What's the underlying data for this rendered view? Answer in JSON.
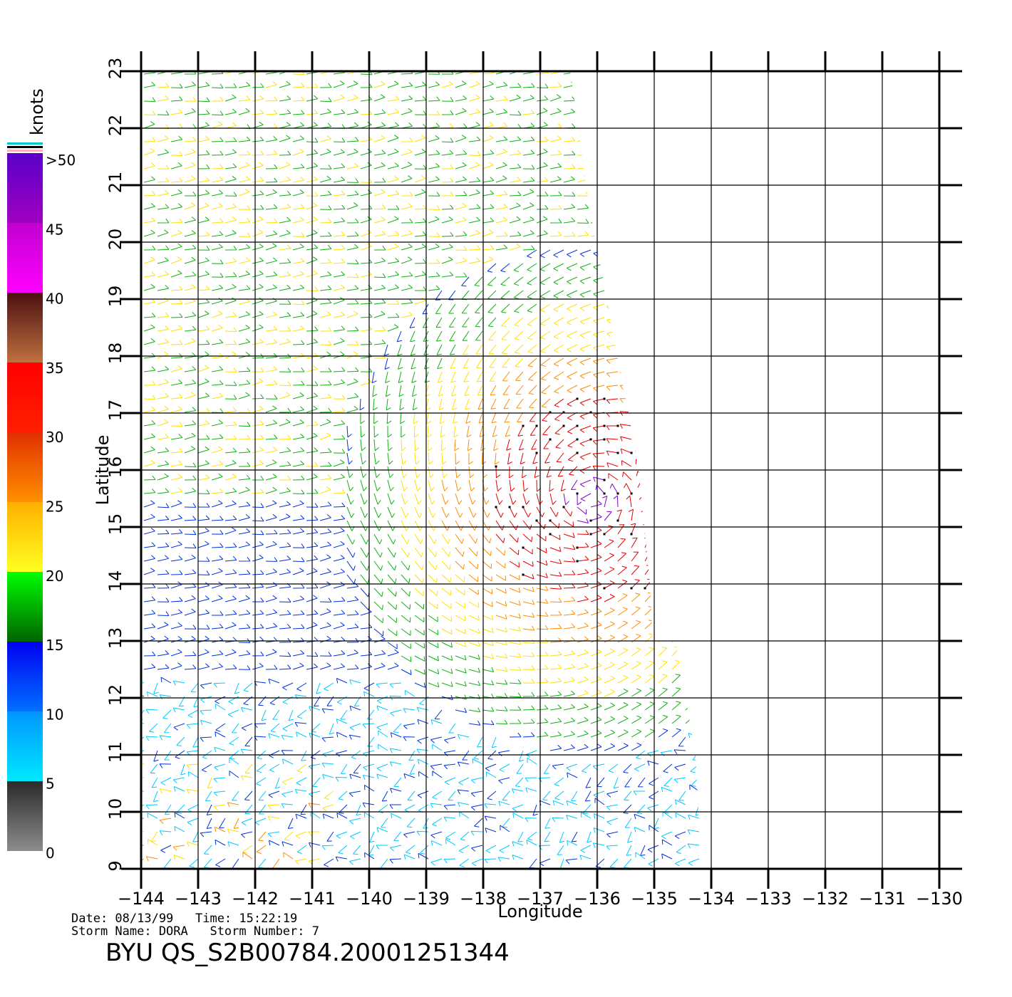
{
  "map": {
    "xlabel": "Longitude",
    "ylabel": "Latitude",
    "lon_ticks": [
      "−144",
      "−143",
      "−142",
      "−141",
      "−140",
      "−139",
      "−138",
      "−137",
      "−136",
      "−135",
      "−134",
      "−133",
      "−132",
      "−131",
      "−130"
    ],
    "lat_ticks": [
      "9",
      "10",
      "11",
      "12",
      "13",
      "14",
      "15",
      "16",
      "17",
      "18",
      "19",
      "20",
      "21",
      "22",
      "23"
    ],
    "lon_range": [
      -144,
      -130
    ],
    "lat_range": [
      9,
      23
    ],
    "storm_center": {
      "lon": -136.1,
      "lat": 15.5
    }
  },
  "colorbar": {
    "title": "knots",
    "labels": [
      ">50",
      "45",
      "40",
      "35",
      "30",
      "25",
      "20",
      "15",
      "10",
      "5",
      "0"
    ],
    "bands": [
      {
        "from": 0,
        "to": 5,
        "colors": [
          "#8c8c8c",
          "#2a2a2a"
        ]
      },
      {
        "from": 5,
        "to": 10,
        "colors": [
          "#00e8ff",
          "#0096ff"
        ]
      },
      {
        "from": 10,
        "to": 15,
        "colors": [
          "#0070ff",
          "#0000f0"
        ]
      },
      {
        "from": 15,
        "to": 20,
        "colors": [
          "#006400",
          "#00ff00"
        ]
      },
      {
        "from": 20,
        "to": 25,
        "colors": [
          "#ffff20",
          "#ffb000"
        ]
      },
      {
        "from": 25,
        "to": 30,
        "colors": [
          "#ff9000",
          "#e03000"
        ]
      },
      {
        "from": 30,
        "to": 35,
        "colors": [
          "#ff2000",
          "#ff0000"
        ]
      },
      {
        "from": 35,
        "to": 40,
        "colors": [
          "#c07040",
          "#4a1010"
        ]
      },
      {
        "from": 40,
        "to": 45,
        "colors": [
          "#ff00ff",
          "#c000d0"
        ]
      },
      {
        "from": 45,
        "to": 50,
        "colors": [
          "#a000c0",
          "#5a00c8"
        ]
      }
    ]
  },
  "meta": {
    "line1": "Date: 08/13/99   Time: 15:22:19",
    "line2": "Storm Name: DORA   Storm Number: 7"
  },
  "footer": "BYU QS_S2B00784.20001251344",
  "colors": {
    "calm": "#404040",
    "cyan": "#00c8ff",
    "blue": "#0030e0",
    "green": "#10b010",
    "yellow": "#ffe000",
    "orange": "#ff8c00",
    "red": "#e00000",
    "purple": "#8000d0"
  }
}
